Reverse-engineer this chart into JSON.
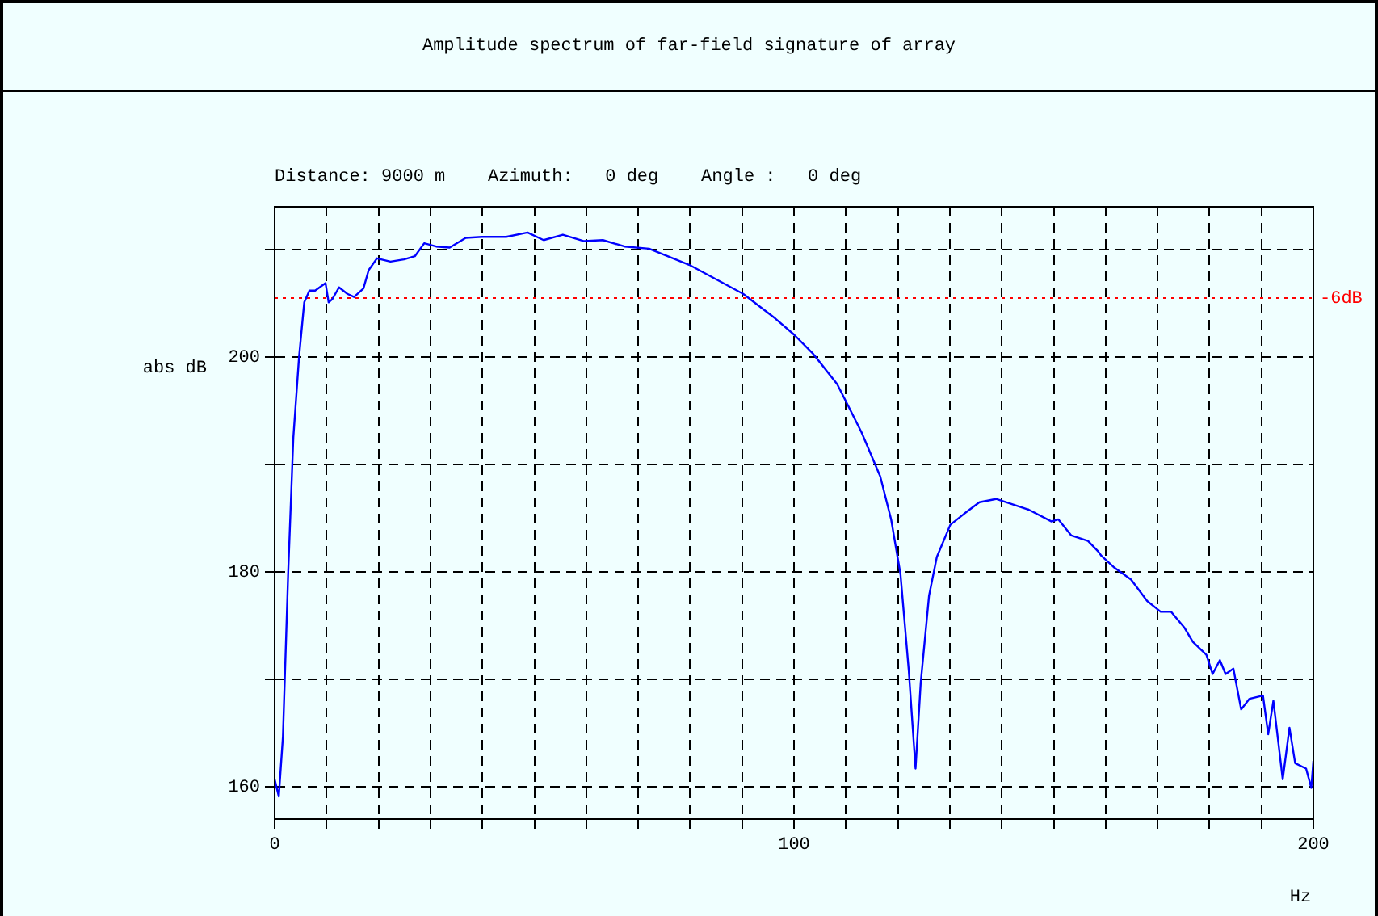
{
  "chart_data": {
    "type": "line",
    "title": "Amplitude spectrum of far-field signature of array",
    "subtitle": "Distance: 9000 m    Azimuth:   0 deg    Angle :   0 deg",
    "xlabel": "Hz",
    "ylabel": "abs dB",
    "xlim": [
      0,
      200
    ],
    "ylim": [
      157,
      214
    ],
    "xticks": [
      0,
      {
        "value": 10,
        "label": null
      },
      {
        "value": 20,
        "label": null
      },
      {
        "value": 30,
        "label": null
      },
      {
        "value": 40,
        "label": null
      },
      {
        "value": 50,
        "label": null
      },
      {
        "value": 60,
        "label": null
      },
      {
        "value": 70,
        "label": null
      },
      {
        "value": 80,
        "label": null
      },
      {
        "value": 90,
        "label": null
      },
      100,
      {
        "value": 110,
        "label": null
      },
      {
        "value": 120,
        "label": null
      },
      {
        "value": 130,
        "label": null
      },
      {
        "value": 140,
        "label": null
      },
      {
        "value": 150,
        "label": null
      },
      {
        "value": 160,
        "label": null
      },
      {
        "value": 170,
        "label": null
      },
      {
        "value": 180,
        "label": null
      },
      {
        "value": 190,
        "label": null
      },
      200
    ],
    "yticks": [
      160,
      {
        "value": 170,
        "label": null
      },
      180,
      {
        "value": 190,
        "label": null
      },
      200,
      {
        "value": 210,
        "label": null
      }
    ],
    "grid": true,
    "marker": "none",
    "line_style": "solid",
    "legend": false,
    "ref_lines": [
      {
        "axis": "y",
        "value": 205.5,
        "label": "-6dB",
        "color": "#ff0000",
        "line_style": "dotted"
      }
    ],
    "series": [
      {
        "color": "#0000ff",
        "x": [
          0,
          0.8,
          1.6,
          2.6,
          3.6,
          4.7,
          5.7,
          6.7,
          7.8,
          9.8,
          10.4,
          11.1,
          12.4,
          14.0,
          15.3,
          17.1,
          18.1,
          19.7,
          22.3,
          24.9,
          27,
          28.8,
          31.1,
          33.7,
          36.8,
          39.9,
          44.6,
          48.7,
          51.8,
          55.5,
          59.6,
          63.2,
          67.4,
          72.1,
          79.8,
          90.2,
          96.4,
          100,
          103.7,
          108.3,
          110.4,
          113,
          116.6,
          118.7,
          120.5,
          122.1,
          123.4,
          124.4,
          126,
          127.5,
          130.1,
          132.7,
          135.7,
          138.9,
          141.5,
          145.2,
          149.6,
          150.9,
          153.4,
          156.6,
          158.6,
          159.2,
          161.7,
          164.9,
          168,
          170.6,
          172.6,
          175.2,
          176.8,
          179.4,
          180.6,
          182,
          183.1,
          184.6,
          186.1,
          187.7,
          190.3,
          191.3,
          192.3,
          194.1,
          195.4,
          196.5,
          198.6,
          199.6,
          200
        ],
        "values": [
          160.7,
          159.1,
          164.7,
          179.8,
          192.5,
          200,
          205.1,
          206.2,
          206.2,
          206.9,
          205.1,
          205.4,
          206.5,
          205.9,
          205.6,
          206.4,
          208.1,
          209.2,
          208.9,
          209.1,
          209.4,
          210.6,
          210.3,
          210.2,
          211.1,
          211.2,
          211.2,
          211.6,
          210.9,
          211.4,
          210.8,
          210.9,
          210.3,
          210.1,
          208.6,
          205.9,
          203.6,
          202.1,
          200.3,
          197.5,
          195.5,
          193,
          188.9,
          184.9,
          179.8,
          170.8,
          161.7,
          169.7,
          177.8,
          181.4,
          184.4,
          185.4,
          186.5,
          186.8,
          186.4,
          185.8,
          184.7,
          184.9,
          183.4,
          182.9,
          181.9,
          181.5,
          180.4,
          179.3,
          177.3,
          176.3,
          176.3,
          174.8,
          173.5,
          172.3,
          170.5,
          171.8,
          170.5,
          171,
          167.2,
          168.2,
          168.5,
          164.9,
          168,
          160.7,
          165.5,
          162.2,
          161.7,
          159.9,
          162.4
        ]
      }
    ]
  }
}
